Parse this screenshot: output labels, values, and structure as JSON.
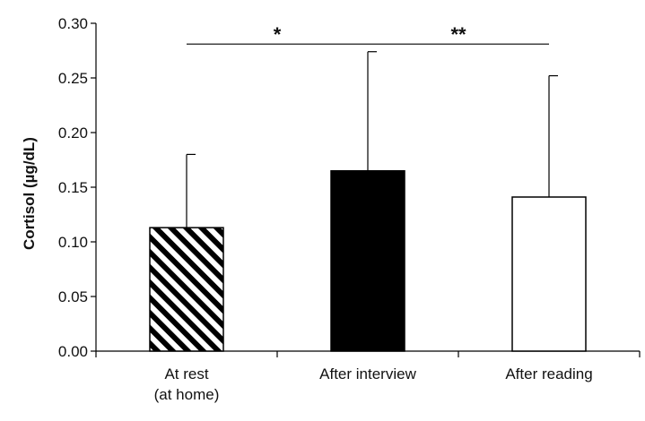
{
  "chart_data": {
    "type": "bar",
    "ylabel": "Cortisol (µg/dL)",
    "ylim": [
      0,
      0.3
    ],
    "yticks": [
      "0.00",
      "0.05",
      "0.10",
      "0.15",
      "0.20",
      "0.25",
      "0.30"
    ],
    "categories": [
      {
        "lines": [
          "At rest",
          "(at home)"
        ]
      },
      {
        "lines": [
          "After interview"
        ]
      },
      {
        "lines": [
          "After reading"
        ]
      }
    ],
    "values": [
      0.113,
      0.165,
      0.141
    ],
    "error_upper": [
      0.18,
      0.274,
      0.252
    ],
    "fills": [
      "hatched",
      "#000000",
      "#ffffff"
    ],
    "significance": [
      {
        "from": 0,
        "to": 1,
        "y": 0.281,
        "label": "*"
      },
      {
        "from": 1,
        "to": 2,
        "y": 0.281,
        "label": "**"
      }
    ],
    "grid": false,
    "legend": "none"
  }
}
